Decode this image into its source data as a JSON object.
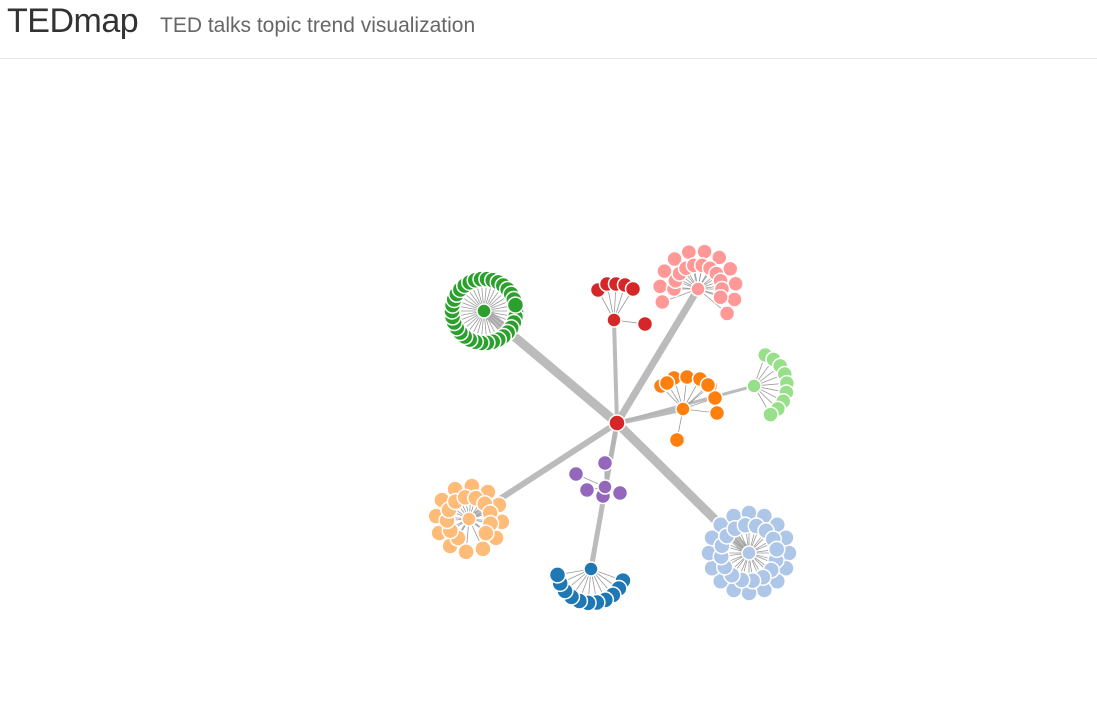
{
  "header": {
    "title": "TEDmap",
    "subtitle": "TED talks topic trend visualization"
  },
  "graph": {
    "center_color": "#d62728",
    "link_color": "#b4b4b4",
    "clusters": [
      {
        "name": "green",
        "color": "#2ca02c",
        "leaves": 34
      },
      {
        "name": "red",
        "color": "#d62728",
        "leaves": 6
      },
      {
        "name": "pink",
        "color": "#ff9896",
        "leaves": 22
      },
      {
        "name": "light-green",
        "color": "#98df8a",
        "leaves": 9
      },
      {
        "name": "orange",
        "color": "#ff7f0e",
        "leaves": 10
      },
      {
        "name": "purple",
        "color": "#9467bd",
        "leaves": 5
      },
      {
        "name": "peach",
        "color": "#ffbb78",
        "leaves": 23
      },
      {
        "name": "blue",
        "color": "#1f77b4",
        "leaves": 11
      },
      {
        "name": "light-blue",
        "color": "#aec7e8",
        "leaves": 32
      }
    ]
  }
}
